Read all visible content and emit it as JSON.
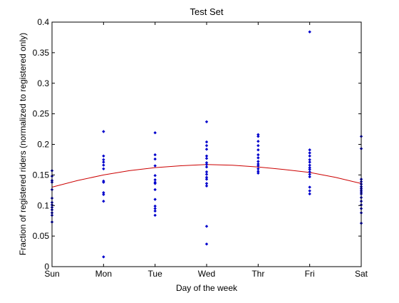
{
  "chart_data": {
    "type": "scatter",
    "title": "Test Set",
    "xlabel": "Day of the week",
    "ylabel": "Fraction of registered riders (normalized to registered only)",
    "xlim": [
      0,
      6
    ],
    "ylim": [
      0,
      0.4
    ],
    "grid": false,
    "x_tick_labels": [
      "Sun",
      "Mon",
      "Tue",
      "Wed",
      "Thr",
      "Fri",
      "Sat"
    ],
    "y_tick_labels": [
      "0",
      "0.05",
      "0.1",
      "0.15",
      "0.2",
      "0.25",
      "0.3",
      "0.35",
      "0.4"
    ],
    "y_ticks": [
      0,
      0.05,
      0.1,
      0.15,
      0.2,
      0.25,
      0.3,
      0.35,
      0.4
    ],
    "series": [
      {
        "kind": "points",
        "color": "#0000cc",
        "points": [
          [
            0,
            0.157
          ],
          [
            0,
            0.148
          ],
          [
            0,
            0.141
          ],
          [
            0,
            0.138
          ],
          [
            0,
            0.126
          ],
          [
            0,
            0.112
          ],
          [
            0,
            0.105
          ],
          [
            0,
            0.101
          ],
          [
            0,
            0.097
          ],
          [
            0,
            0.093
          ],
          [
            0,
            0.088
          ],
          [
            0,
            0.084
          ],
          [
            0,
            0.073
          ],
          [
            1,
            0.221
          ],
          [
            1,
            0.181
          ],
          [
            1,
            0.175
          ],
          [
            1,
            0.171
          ],
          [
            1,
            0.166
          ],
          [
            1,
            0.16
          ],
          [
            1,
            0.14
          ],
          [
            1,
            0.138
          ],
          [
            1,
            0.121
          ],
          [
            1,
            0.118
          ],
          [
            1,
            0.107
          ],
          [
            1,
            0.016
          ],
          [
            2,
            0.219
          ],
          [
            2,
            0.183
          ],
          [
            2,
            0.176
          ],
          [
            2,
            0.165
          ],
          [
            2,
            0.149
          ],
          [
            2,
            0.142
          ],
          [
            2,
            0.138
          ],
          [
            2,
            0.136
          ],
          [
            2,
            0.126
          ],
          [
            2,
            0.11
          ],
          [
            2,
            0.099
          ],
          [
            2,
            0.095
          ],
          [
            2,
            0.091
          ],
          [
            2,
            0.084
          ],
          [
            3,
            0.237
          ],
          [
            3,
            0.204
          ],
          [
            3,
            0.198
          ],
          [
            3,
            0.192
          ],
          [
            3,
            0.181
          ],
          [
            3,
            0.177
          ],
          [
            3,
            0.17
          ],
          [
            3,
            0.167
          ],
          [
            3,
            0.163
          ],
          [
            3,
            0.155
          ],
          [
            3,
            0.151
          ],
          [
            3,
            0.146
          ],
          [
            3,
            0.143
          ],
          [
            3,
            0.136
          ],
          [
            3,
            0.132
          ],
          [
            3,
            0.066
          ],
          [
            3,
            0.037
          ],
          [
            4,
            0.216
          ],
          [
            4,
            0.213
          ],
          [
            4,
            0.205
          ],
          [
            4,
            0.198
          ],
          [
            4,
            0.191
          ],
          [
            4,
            0.183
          ],
          [
            4,
            0.178
          ],
          [
            4,
            0.172
          ],
          [
            4,
            0.168
          ],
          [
            4,
            0.165
          ],
          [
            4,
            0.16
          ],
          [
            4,
            0.156
          ],
          [
            4,
            0.153
          ],
          [
            5,
            0.384
          ],
          [
            5,
            0.191
          ],
          [
            5,
            0.186
          ],
          [
            5,
            0.181
          ],
          [
            5,
            0.175
          ],
          [
            5,
            0.171
          ],
          [
            5,
            0.166
          ],
          [
            5,
            0.162
          ],
          [
            5,
            0.159
          ],
          [
            5,
            0.155
          ],
          [
            5,
            0.151
          ],
          [
            5,
            0.147
          ],
          [
            5,
            0.13
          ],
          [
            5,
            0.124
          ],
          [
            5,
            0.119
          ],
          [
            6,
            0.213
          ],
          [
            6,
            0.193
          ],
          [
            6,
            0.143
          ],
          [
            6,
            0.139
          ],
          [
            6,
            0.135
          ],
          [
            6,
            0.131
          ],
          [
            6,
            0.128
          ],
          [
            6,
            0.125
          ],
          [
            6,
            0.122
          ],
          [
            6,
            0.119
          ],
          [
            6,
            0.113
          ],
          [
            6,
            0.107
          ],
          [
            6,
            0.101
          ],
          [
            6,
            0.095
          ],
          [
            6,
            0.088
          ],
          [
            6,
            0.071
          ]
        ]
      },
      {
        "kind": "line",
        "color": "#cc0000",
        "points": [
          [
            0,
            0.13
          ],
          [
            0.5,
            0.141
          ],
          [
            1,
            0.15
          ],
          [
            1.5,
            0.157
          ],
          [
            2,
            0.162
          ],
          [
            2.5,
            0.165
          ],
          [
            3,
            0.167
          ],
          [
            3.5,
            0.166
          ],
          [
            4,
            0.163
          ],
          [
            4.5,
            0.159
          ],
          [
            5,
            0.154
          ],
          [
            5.5,
            0.146
          ],
          [
            6,
            0.136
          ]
        ]
      }
    ]
  }
}
